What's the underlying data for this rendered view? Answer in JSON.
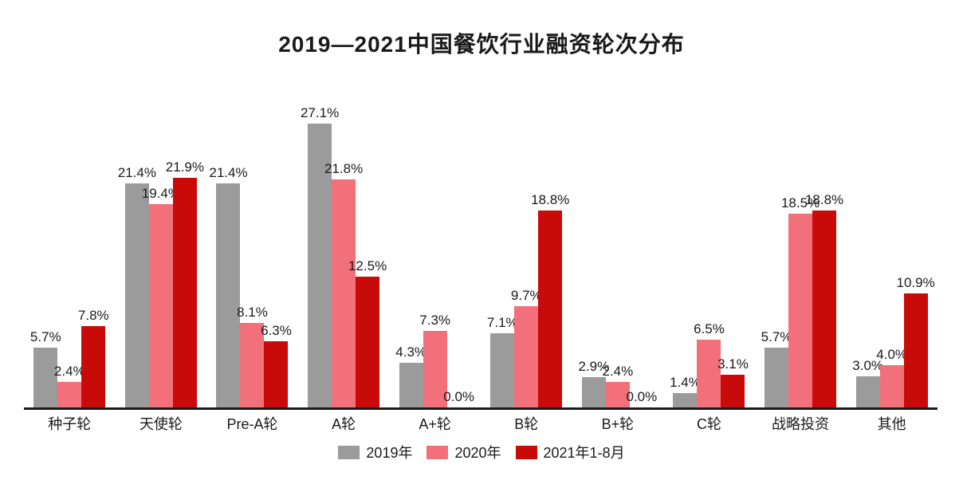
{
  "title": "2019—2021中国餐饮行业融资轮次分布",
  "chart_data": {
    "type": "bar",
    "title": "2019—2021中国餐饮行业融资轮次分布",
    "categories": [
      "种子轮",
      "天使轮",
      "Pre-A轮",
      "A轮",
      "A+轮",
      "B轮",
      "B+轮",
      "C轮",
      "战略投资",
      "其他"
    ],
    "series": [
      {
        "name": "2019年",
        "color": "#9b9b9b",
        "values": [
          5.7,
          21.4,
          21.4,
          27.1,
          4.3,
          7.1,
          2.9,
          1.4,
          5.7,
          3.0
        ]
      },
      {
        "name": "2020年",
        "color": "#f2707a",
        "values": [
          2.4,
          19.4,
          8.1,
          21.8,
          7.3,
          9.7,
          2.4,
          6.5,
          18.5,
          4.0
        ]
      },
      {
        "name": "2021年1-8月",
        "color": "#c80b08",
        "values": [
          7.8,
          21.9,
          6.3,
          12.5,
          0.0,
          18.8,
          0.0,
          3.1,
          18.8,
          10.9
        ]
      }
    ],
    "value_suffix": "%",
    "value_label_decimals": 1,
    "xlabel": "",
    "ylabel": "",
    "ylim": [
      0,
      29
    ],
    "grid": false,
    "legend_position": "bottom",
    "axis_line_color": "#1a1a1a",
    "text_color": "#1a1a1a",
    "background_color": "#ffffff"
  }
}
